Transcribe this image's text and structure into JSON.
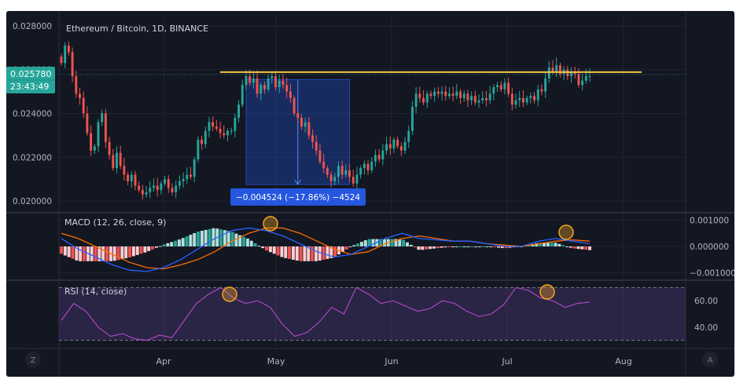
{
  "chart_data": {
    "type": "candlestick",
    "title": "Ethereum / Bitcoin, 1D, BINANCE",
    "price_axis": {
      "ticks": [
        "0.028000",
        "0.026000",
        "0.024000",
        "0.022000",
        "0.020000"
      ],
      "tick_values": [
        0.028,
        0.026,
        0.024,
        0.022,
        0.02
      ],
      "ylim": [
        0.0195,
        0.0285
      ]
    },
    "current_price": {
      "value": "0.025780",
      "countdown": "23:43:49",
      "color": "#26a69a"
    },
    "resistance_line": {
      "value": 0.02578,
      "color": "#f5c542"
    },
    "measure_label": "−0.004524 (−17.86%) −4524",
    "x_axis": {
      "labels": [
        "Apr",
        "May",
        "Jun",
        "Jul",
        "Aug"
      ]
    },
    "candle_series": {
      "up_color": "#26a69a",
      "down_color": "#ef5350",
      "closes": [
        0.0263,
        0.0271,
        0.0268,
        0.0257,
        0.0249,
        0.0247,
        0.024,
        0.0231,
        0.0223,
        0.0225,
        0.0236,
        0.024,
        0.0227,
        0.0221,
        0.0215,
        0.0222,
        0.0216,
        0.0212,
        0.0209,
        0.0212,
        0.0207,
        0.0205,
        0.0203,
        0.0204,
        0.0206,
        0.0207,
        0.0205,
        0.0208,
        0.021,
        0.0206,
        0.0204,
        0.0207,
        0.0209,
        0.021,
        0.0212,
        0.0211,
        0.0219,
        0.0228,
        0.0226,
        0.0232,
        0.0236,
        0.0234,
        0.0233,
        0.0231,
        0.023,
        0.0232,
        0.0232,
        0.0238,
        0.0244,
        0.0253,
        0.0257,
        0.0254,
        0.0256,
        0.0249,
        0.0253,
        0.0251,
        0.0256,
        0.0257,
        0.0252,
        0.0255,
        0.0253,
        0.025,
        0.0247,
        0.024,
        0.0238,
        0.0234,
        0.0236,
        0.023,
        0.0227,
        0.0223,
        0.0218,
        0.0215,
        0.0212,
        0.0209,
        0.0211,
        0.0216,
        0.0212,
        0.0214,
        0.0211,
        0.0208,
        0.0212,
        0.0215,
        0.0217,
        0.0214,
        0.0218,
        0.0221,
        0.0219,
        0.0223,
        0.0226,
        0.0224,
        0.0228,
        0.0225,
        0.0223,
        0.0227,
        0.0232,
        0.0243,
        0.0249,
        0.0247,
        0.0245,
        0.0249,
        0.0248,
        0.025,
        0.0249,
        0.025,
        0.0248,
        0.0249,
        0.0248,
        0.025,
        0.0247,
        0.0249,
        0.0246,
        0.0248,
        0.0245,
        0.0246,
        0.0247,
        0.0246,
        0.0249,
        0.0252,
        0.0253,
        0.0251,
        0.0254,
        0.0249,
        0.0244,
        0.0246,
        0.0247,
        0.0245,
        0.0247,
        0.0248,
        0.0246,
        0.0251,
        0.025,
        0.0256,
        0.0261,
        0.0259,
        0.0262,
        0.0258,
        0.026,
        0.0257,
        0.0259,
        0.0258,
        0.0253,
        0.0255,
        0.0257,
        0.0257
      ]
    },
    "macd": {
      "label": "MACD (12, 26, close, 9)",
      "ticks": [
        "0.001000",
        "0.000000",
        "−0.001000"
      ],
      "tick_values": [
        0.001,
        0,
        -0.001
      ],
      "ylim": [
        -0.00125,
        0.00125
      ],
      "macd_color": "#2962ff",
      "signal_color": "#ff6d00",
      "macd_line": [
        0.0003,
        -0.0001,
        -0.0004,
        -0.0007,
        -0.0009,
        -0.00095,
        -0.0008,
        -0.0005,
        -0.0001,
        0.0003,
        0.0006,
        0.0007,
        0.0006,
        0.0004,
        0.0001,
        -0.0002,
        -0.0004,
        -0.0003,
        0.0,
        0.0003,
        0.0005,
        0.0003,
        0.00025,
        0.0002,
        0.0002,
        0.0001,
        0.0,
        0.0,
        0.0002,
        0.0003,
        0.0002,
        0.0001
      ],
      "signal_line": [
        0.0005,
        0.0003,
        0.0,
        -0.0003,
        -0.0006,
        -0.0008,
        -0.00085,
        -0.0007,
        -0.0005,
        -0.0002,
        0.0002,
        0.0005,
        0.0007,
        0.0007,
        0.0005,
        0.0002,
        -0.0001,
        -0.0003,
        -0.0002,
        0.0001,
        0.0003,
        0.0004,
        0.0003,
        0.0002,
        0.0002,
        0.0001,
        5e-05,
        0.0,
        0.0001,
        0.0002,
        0.00025,
        0.0002
      ]
    },
    "rsi": {
      "label": "RSI (14, close)",
      "ticks": [
        "60.00",
        "40.00"
      ],
      "tick_values": [
        60,
        40
      ],
      "bands": [
        70,
        30
      ],
      "ylim": [
        25,
        75
      ],
      "color": "#ab47bc",
      "values": [
        45,
        58,
        52,
        40,
        33,
        35,
        31,
        30,
        34,
        32,
        45,
        58,
        65,
        70,
        62,
        58,
        60,
        55,
        42,
        33,
        36,
        44,
        55,
        50,
        70,
        65,
        58,
        60,
        56,
        52,
        54,
        60,
        58,
        52,
        48,
        50,
        57,
        70,
        68,
        62,
        60,
        55,
        58,
        59
      ]
    },
    "panel_buttons": {
      "left": "Z",
      "right": "A"
    }
  }
}
